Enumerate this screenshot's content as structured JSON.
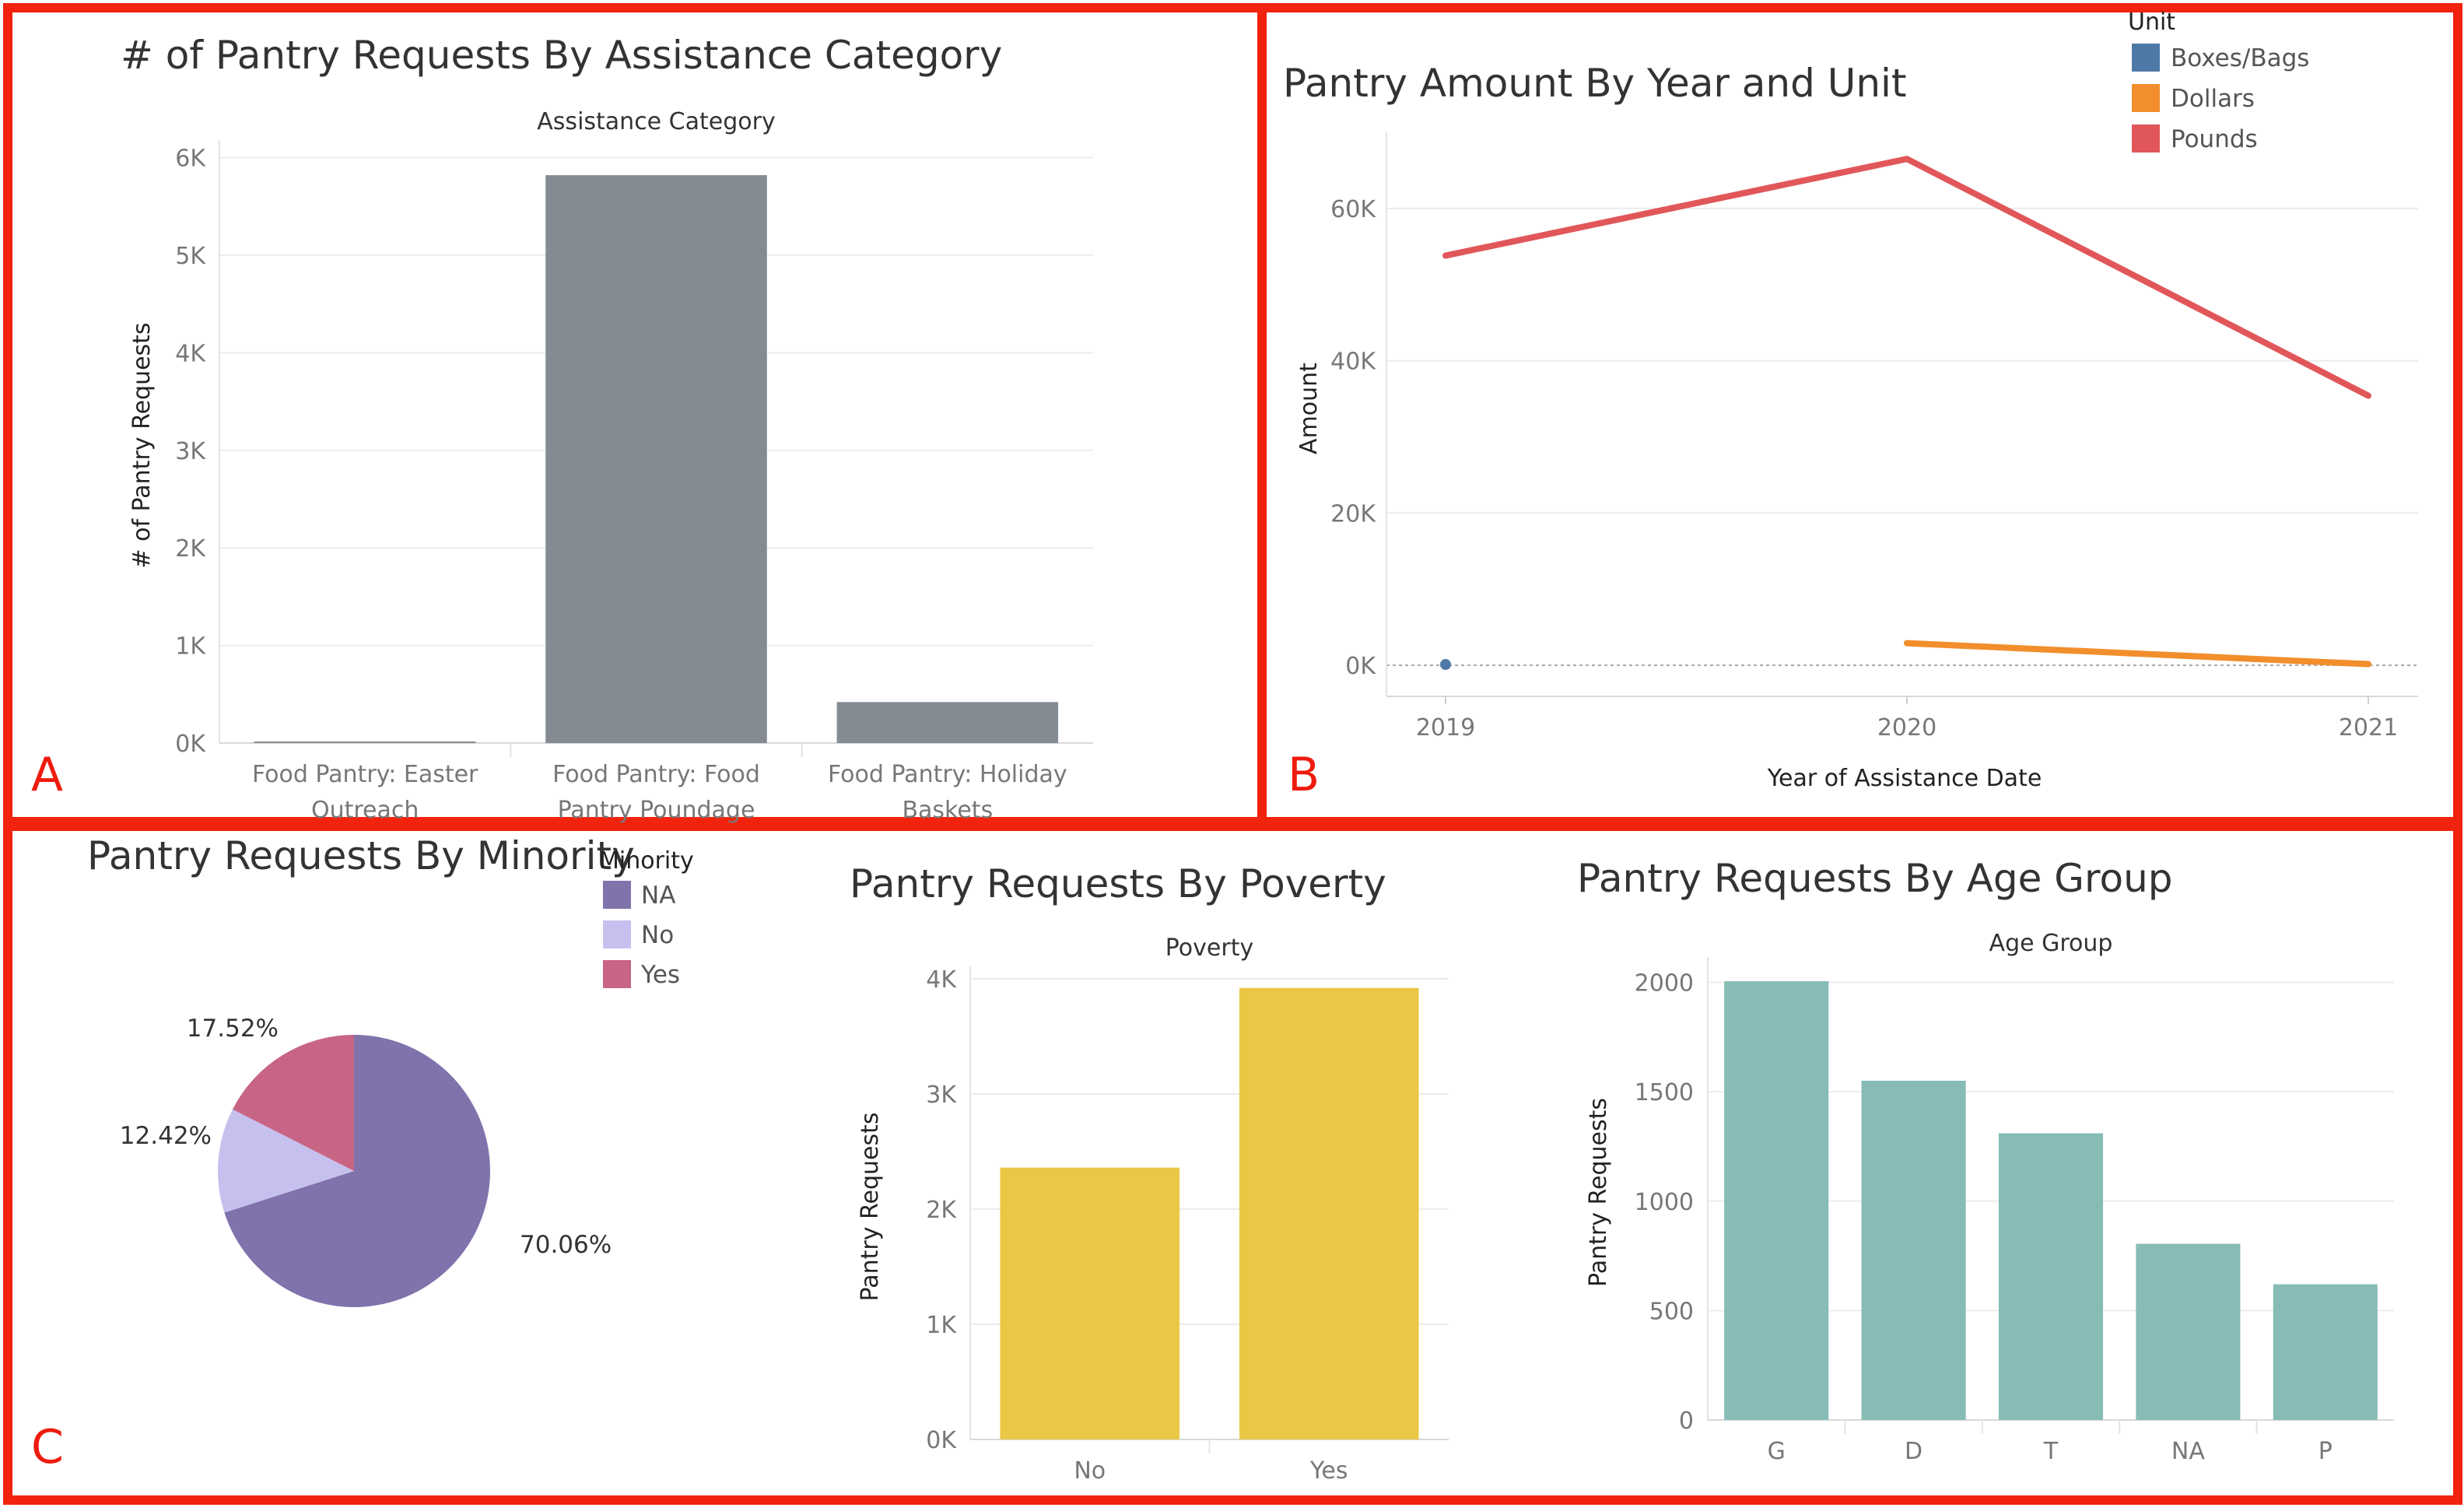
{
  "panel_letters": {
    "a": "A",
    "b": "B",
    "c": "C"
  },
  "colors": {
    "border": "#f2230e"
  },
  "chart_data": [
    {
      "id": "assistance",
      "type": "bar",
      "title": "# of Pantry Requests By Assistance Category",
      "subtitle": "Assistance Category",
      "ylabel": "# of Pantry Requests",
      "categories": [
        "Food Pantry: Easter Outreach",
        "Food Pantry: Food Pantry Poundage",
        "Food Pantry: Holiday Baskets"
      ],
      "category_lines": [
        [
          "Food Pantry: Easter",
          "Outreach"
        ],
        [
          "Food Pantry: Food",
          "Pantry Poundage"
        ],
        [
          "Food Pantry: Holiday",
          "Baskets"
        ]
      ],
      "values": [
        15,
        5820,
        420
      ],
      "ylim": [
        0,
        6100
      ],
      "yticks": [
        {
          "v": 0,
          "label": "0K"
        },
        {
          "v": 1000,
          "label": "1K"
        },
        {
          "v": 2000,
          "label": "2K"
        },
        {
          "v": 3000,
          "label": "3K"
        },
        {
          "v": 4000,
          "label": "4K"
        },
        {
          "v": 5000,
          "label": "5K"
        },
        {
          "v": 6000,
          "label": "6K"
        }
      ],
      "color": "#848b92",
      "grid": true
    },
    {
      "id": "amount",
      "type": "line",
      "title": "Pantry Amount By Year and Unit",
      "xlabel": "Year of Assistance Date",
      "ylabel": "Amount",
      "legend_title": "Unit",
      "x": [
        2019,
        2020,
        2021
      ],
      "xticks": [
        "2019",
        "2020",
        "2021"
      ],
      "series": [
        {
          "name": "Boxes/Bags",
          "color": "#4e79a7",
          "points": [
            [
              2019,
              100
            ]
          ]
        },
        {
          "name": "Dollars",
          "color": "#f28e2b",
          "points": [
            [
              2020,
              2900
            ],
            [
              2021,
              150
            ]
          ]
        },
        {
          "name": "Pounds",
          "color": "#e15759",
          "points": [
            [
              2019,
              53800
            ],
            [
              2020,
              66500
            ],
            [
              2021,
              35400
            ]
          ]
        }
      ],
      "ylim": [
        0,
        70000
      ],
      "yticks": [
        {
          "v": 0,
          "label": "0K"
        },
        {
          "v": 20000,
          "label": "20K"
        },
        {
          "v": 40000,
          "label": "40K"
        },
        {
          "v": 60000,
          "label": "60K"
        }
      ],
      "grid": true
    },
    {
      "id": "minority",
      "type": "pie",
      "title": "Pantry Requests By Minority",
      "legend_title": "Minority",
      "slices": [
        {
          "name": "NA",
          "value": 70.06,
          "label": "70.06%",
          "color": "#8073ac"
        },
        {
          "name": "No",
          "value": 12.42,
          "label": "12.42%",
          "color": "#c6c0ee"
        },
        {
          "name": "Yes",
          "value": 17.52,
          "label": "17.52%",
          "color": "#c86484"
        }
      ]
    },
    {
      "id": "poverty",
      "type": "bar",
      "title": "Pantry Requests By Poverty",
      "subtitle": "Poverty",
      "ylabel": "Pantry Requests",
      "categories": [
        "No",
        "Yes"
      ],
      "values": [
        2360,
        3920
      ],
      "ylim": [
        0,
        4040
      ],
      "yticks": [
        {
          "v": 0,
          "label": "0K"
        },
        {
          "v": 1000,
          "label": "1K"
        },
        {
          "v": 2000,
          "label": "2K"
        },
        {
          "v": 3000,
          "label": "3K"
        },
        {
          "v": 4000,
          "label": "4K"
        }
      ],
      "color": "#eac846",
      "grid": true
    },
    {
      "id": "agegroup",
      "type": "bar",
      "title": "Pantry Requests By Age Group",
      "subtitle": "Age Group",
      "ylabel": "Pantry Requests",
      "categories": [
        "G",
        "D",
        "T",
        "NA",
        "P"
      ],
      "values": [
        2005,
        1550,
        1310,
        805,
        620
      ],
      "ylim": [
        0,
        2080
      ],
      "yticks": [
        {
          "v": 0,
          "label": "0"
        },
        {
          "v": 500,
          "label": "500"
        },
        {
          "v": 1000,
          "label": "1000"
        },
        {
          "v": 1500,
          "label": "1500"
        },
        {
          "v": 2000,
          "label": "2000"
        }
      ],
      "color": "#86bcb5",
      "grid": true
    }
  ]
}
